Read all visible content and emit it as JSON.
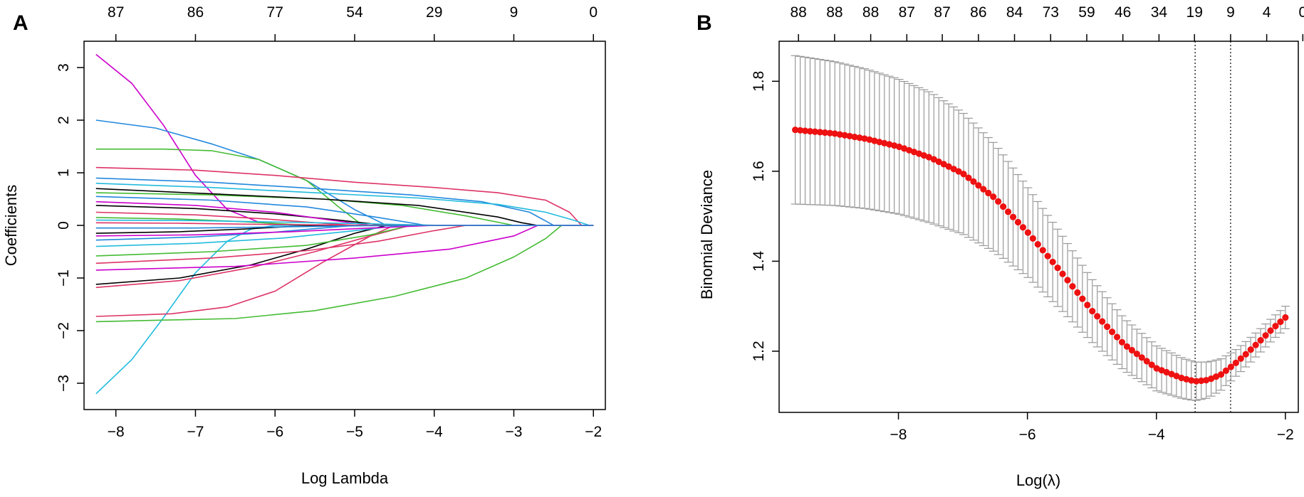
{
  "chart_data": [
    {
      "panel": "A",
      "type": "line",
      "xlabel": "Log Lambda",
      "ylabel": "Coefficients",
      "xlim": [
        -8.4,
        -1.85
      ],
      "ylim": [
        -3.5,
        3.5
      ],
      "x_ticks": [
        -8,
        -7,
        -6,
        -5,
        -4,
        -3,
        -2
      ],
      "y_ticks": [
        -3,
        -2,
        -1,
        0,
        1,
        2,
        3
      ],
      "top_ticks": {
        "x": [
          -8,
          -7,
          -6,
          -5,
          -4,
          -3,
          -2
        ],
        "labels": [
          "87",
          "86",
          "77",
          "54",
          "29",
          "9",
          "0"
        ]
      },
      "series": [
        {
          "color": "#cc00cc",
          "x": [
            -8.25,
            -7.8,
            -7.4,
            -7.0,
            -6.6,
            -6.2,
            -5.8
          ],
          "values": [
            3.25,
            2.7,
            1.9,
            0.95,
            0.3,
            0.06,
            0.0
          ]
        },
        {
          "color": "#22bbdd",
          "x": [
            -8.25,
            -7.8,
            -7.4,
            -7.0,
            -6.6,
            -6.3,
            -6.0
          ],
          "values": [
            -3.2,
            -2.55,
            -1.75,
            -0.9,
            -0.3,
            -0.07,
            0.0
          ]
        },
        {
          "color": "#2288dd",
          "x": [
            -8.25,
            -7.5,
            -6.8,
            -6.2,
            -5.6,
            -5.0,
            -4.6
          ],
          "values": [
            2.0,
            1.85,
            1.55,
            1.25,
            0.85,
            0.3,
            0.0
          ]
        },
        {
          "color": "#44bb33",
          "x": [
            -8.25,
            -7.4,
            -6.8,
            -6.2,
            -5.6,
            -5.2,
            -4.9
          ],
          "values": [
            1.45,
            1.45,
            1.42,
            1.25,
            0.85,
            0.35,
            0.0
          ]
        },
        {
          "color": "#44bb33",
          "x": [
            -8.25,
            -7.4,
            -6.5,
            -5.5,
            -4.5,
            -3.6,
            -3.0,
            -2.6,
            -2.4
          ],
          "values": [
            -1.83,
            -1.8,
            -1.77,
            -1.62,
            -1.35,
            -1.0,
            -0.6,
            -0.25,
            0.0
          ]
        },
        {
          "color": "#dd3366",
          "x": [
            -8.25,
            -7.3,
            -6.6,
            -6.0,
            -5.4,
            -4.8,
            -4.5
          ],
          "values": [
            -1.73,
            -1.68,
            -1.55,
            -1.25,
            -0.7,
            -0.2,
            0.0
          ]
        },
        {
          "color": "#dd3366",
          "x": [
            -8.25,
            -7.0,
            -6.0,
            -5.0,
            -4.0,
            -3.2,
            -2.6,
            -2.3,
            -2.15
          ],
          "values": [
            1.1,
            1.05,
            0.95,
            0.82,
            0.72,
            0.62,
            0.48,
            0.25,
            0.0
          ]
        },
        {
          "color": "#000000",
          "x": [
            -8.25,
            -7.2,
            -6.3,
            -5.6,
            -5.0,
            -4.6
          ],
          "values": [
            -1.12,
            -1.0,
            -0.75,
            -0.45,
            -0.15,
            0.0
          ]
        },
        {
          "color": "#dd3366",
          "x": [
            -8.25,
            -7.2,
            -6.3,
            -5.5,
            -4.8,
            -4.3
          ],
          "values": [
            -1.18,
            -1.05,
            -0.8,
            -0.5,
            -0.2,
            0.0
          ]
        },
        {
          "color": "#2288dd",
          "x": [
            -8.25,
            -6.8,
            -5.5,
            -4.3,
            -3.4,
            -2.8,
            -2.5
          ],
          "values": [
            0.9,
            0.82,
            0.7,
            0.58,
            0.45,
            0.25,
            0.0
          ]
        },
        {
          "color": "#22bbdd",
          "x": [
            -8.25,
            -6.8,
            -5.5,
            -4.2,
            -3.2,
            -2.6,
            -2.25,
            -2.05
          ],
          "values": [
            0.8,
            0.72,
            0.62,
            0.52,
            0.4,
            0.25,
            0.1,
            0.0
          ]
        },
        {
          "color": "#44bb33",
          "x": [
            -8.25,
            -6.8,
            -5.4,
            -4.4,
            -3.6,
            -3.0
          ],
          "values": [
            0.62,
            0.58,
            0.5,
            0.38,
            0.18,
            0.0
          ]
        },
        {
          "color": "#cc00cc",
          "x": [
            -8.25,
            -6.5,
            -5.0,
            -3.8,
            -3.0,
            -2.7
          ],
          "values": [
            -0.85,
            -0.78,
            -0.62,
            -0.45,
            -0.2,
            0.0
          ]
        },
        {
          "color": "#000000",
          "x": [
            -8.25,
            -6.8,
            -5.4,
            -4.2,
            -3.2,
            -2.9,
            -2.7
          ],
          "values": [
            0.7,
            0.6,
            0.5,
            0.38,
            0.16,
            0.05,
            0.0
          ]
        },
        {
          "color": "#dd3366",
          "x": [
            -8.25,
            -6.8,
            -5.6,
            -4.7,
            -4.0,
            -3.6
          ],
          "values": [
            -0.72,
            -0.62,
            -0.48,
            -0.3,
            -0.1,
            0.0
          ]
        },
        {
          "color": "#2288dd",
          "x": [
            -8.25,
            -6.8,
            -5.6,
            -4.7,
            -4.1
          ],
          "values": [
            0.55,
            0.48,
            0.35,
            0.15,
            0.0
          ]
        },
        {
          "color": "#44bb33",
          "x": [
            -8.25,
            -6.8,
            -5.6,
            -4.8,
            -4.3
          ],
          "values": [
            -0.58,
            -0.5,
            -0.38,
            -0.18,
            0.0
          ]
        },
        {
          "color": "#000000",
          "x": [
            -8.25,
            -7.0,
            -6.0,
            -5.2,
            -4.6
          ],
          "values": [
            0.38,
            0.32,
            0.22,
            0.1,
            0.0
          ]
        },
        {
          "color": "#22bbdd",
          "x": [
            -8.25,
            -7.0,
            -5.9,
            -5.0,
            -4.4
          ],
          "values": [
            -0.4,
            -0.34,
            -0.24,
            -0.1,
            0.0
          ]
        },
        {
          "color": "#cc00cc",
          "x": [
            -8.25,
            -7.0,
            -6.0,
            -5.3,
            -4.8
          ],
          "values": [
            0.45,
            0.38,
            0.25,
            0.1,
            0.0
          ]
        },
        {
          "color": "#dd3366",
          "x": [
            -8.25,
            -7.0,
            -6.1,
            -5.4,
            -5.0
          ],
          "values": [
            0.25,
            0.2,
            0.12,
            0.04,
            0.0
          ]
        },
        {
          "color": "#2288dd",
          "x": [
            -8.25,
            -7.0,
            -6.1,
            -5.4,
            -5.0
          ],
          "values": [
            -0.28,
            -0.22,
            -0.14,
            -0.05,
            0.0
          ]
        },
        {
          "color": "#44bb33",
          "x": [
            -8.25,
            -7.2,
            -6.4,
            -5.8,
            -5.4
          ],
          "values": [
            0.15,
            0.12,
            0.07,
            0.02,
            0.0
          ]
        },
        {
          "color": "#000000",
          "x": [
            -8.25,
            -7.2,
            -6.4,
            -5.8,
            -5.4
          ],
          "values": [
            -0.15,
            -0.12,
            -0.07,
            -0.02,
            0.0
          ]
        },
        {
          "color": "#cc00cc",
          "x": [
            -8.25,
            -7.0,
            -5.8,
            -4.8,
            -4.0
          ],
          "values": [
            -0.2,
            -0.18,
            -0.12,
            -0.05,
            0.0
          ]
        },
        {
          "color": "#22bbdd",
          "x": [
            -8.25,
            -7.0,
            -5.8,
            -4.8,
            -3.9
          ],
          "values": [
            0.1,
            0.09,
            0.06,
            0.03,
            0.0
          ]
        },
        {
          "color": "#dd3366",
          "x": [
            -8.25,
            -7.2,
            -6.2,
            -5.3,
            -4.6
          ],
          "values": [
            0.05,
            0.04,
            0.02,
            0.01,
            0.0
          ]
        },
        {
          "color": "#2288dd",
          "x": [
            -8.25,
            -7.0,
            -6.0,
            -5.0,
            -4.2
          ],
          "values": [
            -0.05,
            -0.05,
            -0.03,
            -0.01,
            0.0
          ]
        }
      ]
    },
    {
      "panel": "B",
      "type": "scatter",
      "xlabel": "Log(λ)",
      "ylabel": "Binomial Deviance",
      "xlim": [
        -9.85,
        -1.8
      ],
      "ylim": [
        1.064,
        1.889
      ],
      "x_ticks": [
        -8,
        -6,
        -4,
        -2
      ],
      "y_ticks": [
        1.2,
        1.4,
        1.6,
        1.8
      ],
      "top_ticks": {
        "x": [
          -9.55,
          -8.99,
          -8.43,
          -7.87,
          -7.32,
          -6.76,
          -6.2,
          -5.64,
          -5.08,
          -4.52,
          -3.96,
          -3.41,
          -2.85,
          -2.29,
          -1.73
        ],
        "labels": [
          "88",
          "88",
          "88",
          "87",
          "87",
          "86",
          "84",
          "73",
          "59",
          "46",
          "34",
          "19",
          "9",
          "4",
          "0"
        ]
      },
      "vlines": [
        -3.4,
        -2.85
      ],
      "point_color": "#ee1111",
      "errorbar_color": "#999999",
      "knots_x": [
        -9.6,
        -9.0,
        -8.5,
        -8.0,
        -7.5,
        -7.0,
        -6.5,
        -6.0,
        -5.5,
        -5.0,
        -4.5,
        -4.0,
        -3.6,
        -3.4,
        -3.2,
        -3.0,
        -2.8,
        -2.6,
        -2.4,
        -2.2,
        -2.0
      ],
      "knots_y": [
        1.692,
        1.684,
        1.672,
        1.655,
        1.63,
        1.595,
        1.54,
        1.465,
        1.38,
        1.29,
        1.215,
        1.162,
        1.14,
        1.133,
        1.136,
        1.148,
        1.17,
        1.195,
        1.222,
        1.25,
        1.275
      ],
      "knots_se": [
        0.165,
        0.16,
        0.155,
        0.15,
        0.145,
        0.135,
        0.12,
        0.1,
        0.085,
        0.07,
        0.058,
        0.05,
        0.045,
        0.043,
        0.04,
        0.035,
        0.03,
        0.028,
        0.026,
        0.025,
        0.025
      ],
      "n_points": 100
    }
  ],
  "panels": {
    "a": {
      "letter": "A",
      "xlabel": "Log Lambda",
      "ylabel": "Coefficients",
      "x_tick_labels": [
        "−8",
        "−7",
        "−6",
        "−5",
        "−4",
        "−3",
        "−2"
      ],
      "y_tick_labels": [
        "−3",
        "−2",
        "−1",
        "0",
        "1",
        "2",
        "3"
      ],
      "top_tick_labels": [
        "87",
        "86",
        "77",
        "54",
        "29",
        "9",
        "0"
      ]
    },
    "b": {
      "letter": "B",
      "xlabel": "Log(λ)",
      "ylabel": "Binomial Deviance",
      "x_tick_labels": [
        "−8",
        "−6",
        "−4",
        "−2"
      ],
      "y_tick_labels": [
        "1.2",
        "1.4",
        "1.6",
        "1.8"
      ],
      "top_tick_labels": [
        "88",
        "88",
        "88",
        "87",
        "87",
        "86",
        "84",
        "73",
        "59",
        "46",
        "34",
        "19",
        "9",
        "4",
        "0"
      ]
    }
  }
}
